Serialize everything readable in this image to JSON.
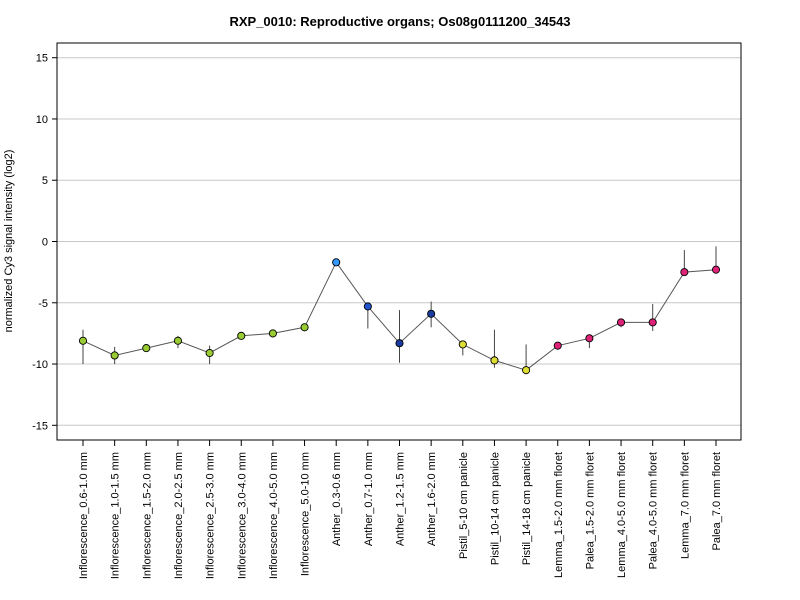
{
  "chart_data": {
    "type": "line",
    "title": "RXP_0010: Reproductive organs; Os08g0111200_34543",
    "ylabel": "normalized Cy3 signal intensity (log2)",
    "xlabel": "",
    "ylim": [
      -16.2,
      16.2
    ],
    "yticks": [
      -15,
      -10,
      -5,
      0,
      5,
      10,
      15
    ],
    "grid": true,
    "categories": [
      "Inflorescence_0.6-1.0 mm",
      "Inflorescence_1.0-1.5 mm",
      "Inflorescence_1.5-2.0 mm",
      "Inflorescence_2.0-2.5 mm",
      "Inflorescence_2.5-3.0 mm",
      "Inflorescence_3.0-4.0 mm",
      "Inflorescence_4.0-5.0 mm",
      "Inflorescence_5.0-10 mm",
      "Anther_0.3-0.6 mm",
      "Anther_0.7-1.0 mm",
      "Anther_1.2-1.5 mm",
      "Anther_1.6-2.0 mm",
      "Pistil_5-10 cm panicle",
      "Pistil_10-14 cm panicle",
      "Pistil_14-18 cm panicle",
      "Lemma_1.5-2.0 mm floret",
      "Palea_1.5-2.0 mm floret",
      "Lemma_4.0-5.0 mm floret",
      "Palea_4.0-5.0 mm floret",
      "Lemma_7.0 mm floret",
      "Palea_7.0 mm floret"
    ],
    "values": [
      -8.1,
      -9.3,
      -8.7,
      -8.1,
      -9.1,
      -7.7,
      -7.5,
      -7.0,
      -1.7,
      -5.3,
      -8.3,
      -5.9,
      -8.4,
      -9.7,
      -10.5,
      -8.5,
      -7.9,
      -6.6,
      -6.6,
      -2.5,
      -2.3
    ],
    "error_low": [
      -10.0,
      -10.0,
      -8.9,
      -8.7,
      -10.0,
      -7.9,
      -7.7,
      -7.1,
      -1.7,
      -7.1,
      -9.9,
      -7.0,
      -9.3,
      -10.3,
      -10.5,
      -8.7,
      -8.7,
      -7.0,
      -7.3,
      -2.6,
      -2.3
    ],
    "error_high": [
      -7.2,
      -8.6,
      -8.5,
      -7.7,
      -8.5,
      -7.6,
      -7.4,
      -6.9,
      -1.6,
      -5.0,
      -5.6,
      -4.9,
      -8.1,
      -7.2,
      -8.4,
      -8.3,
      -7.8,
      -6.4,
      -5.1,
      -0.7,
      -0.4
    ],
    "point_colors": [
      "#99cc33",
      "#99cc33",
      "#99cc33",
      "#99cc33",
      "#99cc33",
      "#99cc33",
      "#99cc33",
      "#99cc33",
      "#3399ff",
      "#2255cc",
      "#1a3ba0",
      "#1a3ba0",
      "#dddd33",
      "#dddd33",
      "#dddd33",
      "#dd2277",
      "#dd2277",
      "#dd2277",
      "#dd2277",
      "#dd2277",
      "#dd2277"
    ],
    "line_color": "#555555",
    "grid_color": "#c8c8c8"
  }
}
